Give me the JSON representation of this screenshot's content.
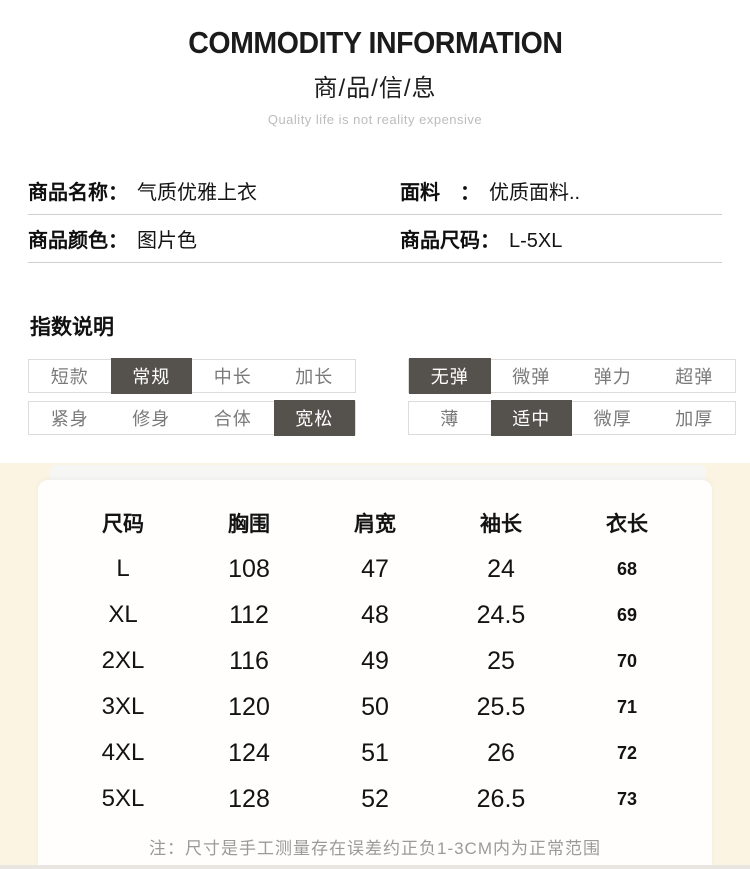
{
  "header": {
    "title": "COMMODITY INFORMATION",
    "subtitle": "商/品/信/息",
    "tagline": "Quality life is not reality expensive"
  },
  "info": {
    "rows": [
      {
        "cells": [
          {
            "label": "商品名称：",
            "value": "气质优雅上衣"
          },
          {
            "label": "面料　：",
            "value": "优质面料.."
          }
        ]
      },
      {
        "cells": [
          {
            "label": "商品颜色：",
            "value": "图片色"
          },
          {
            "label": "商品尺码：",
            "value": "L-5XL"
          }
        ]
      }
    ]
  },
  "index_section": {
    "heading": "指数说明",
    "groups": [
      {
        "rows": [
          {
            "options": [
              "短款",
              "常规",
              "中长",
              "加长"
            ],
            "selected": 1
          },
          {
            "options": [
              "紧身",
              "修身",
              "合体",
              "宽松"
            ],
            "selected": 3
          }
        ]
      },
      {
        "rows": [
          {
            "options": [
              "无弹",
              "微弹",
              "弹力",
              "超弹"
            ],
            "selected": 0
          },
          {
            "options": [
              "薄",
              "适中",
              "微厚",
              "加厚"
            ],
            "selected": 1
          }
        ]
      }
    ]
  },
  "size_chart": {
    "columns": [
      "尺码",
      "胸围",
      "肩宽",
      "袖长",
      "衣长"
    ],
    "rows": [
      [
        "L",
        "108",
        "47",
        "24",
        "68"
      ],
      [
        "XL",
        "112",
        "48",
        "24.5",
        "69"
      ],
      [
        "2XL",
        "116",
        "49",
        "25",
        "70"
      ],
      [
        "3XL",
        "120",
        "50",
        "25.5",
        "71"
      ],
      [
        "4XL",
        "124",
        "51",
        "26",
        "72"
      ],
      [
        "5XL",
        "128",
        "52",
        "26.5",
        "73"
      ]
    ],
    "note": "注：尺寸是手工测量存在误差约正负1-3CM内为正常范围"
  },
  "colors": {
    "selected_chip_bg": "#55524d",
    "selected_chip_text": "#ffffff",
    "cream_background": "#fcf4e2",
    "panel_background": "#fffefd",
    "divider": "#cfcfcf",
    "muted_text": "#9a9a9a"
  }
}
